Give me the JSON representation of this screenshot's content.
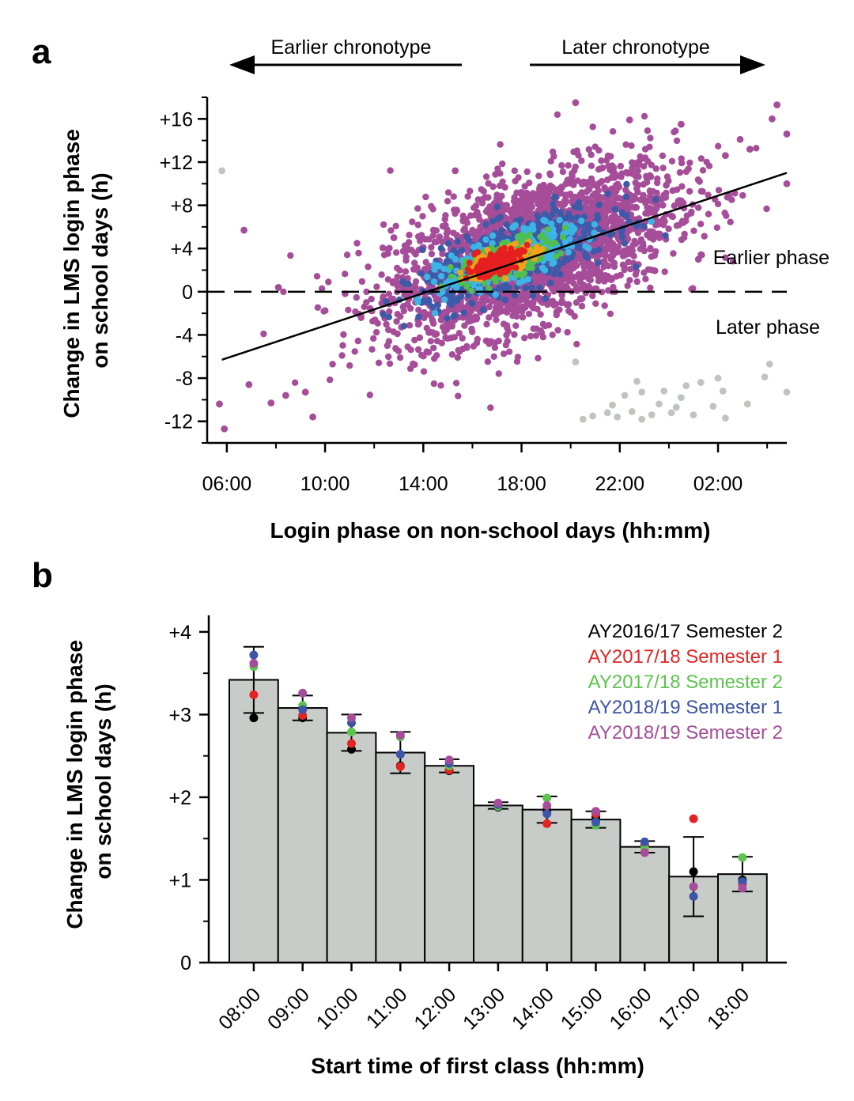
{
  "chart_data": [
    {
      "panel_label": "a",
      "type": "scatter",
      "xlabel": "Login phase on non-school days (hh:mm)",
      "ylabel": "Change in LMS login phase on school days (h)",
      "x_tick_labels": [
        "06:00",
        "10:00",
        "14:00",
        "18:00",
        "22:00",
        "02:00"
      ],
      "x_ticks_hours": [
        6,
        10,
        14,
        18,
        22,
        26
      ],
      "xlim_hours": [
        5.2,
        28.8
      ],
      "y_tick_labels": [
        "+16",
        "+12",
        "+8",
        "+4",
        "0",
        "-4",
        "-8",
        "-12"
      ],
      "y_ticks": [
        16,
        12,
        8,
        4,
        0,
        -4,
        -8,
        -12
      ],
      "ylim": [
        -14,
        18
      ],
      "annotations": {
        "earlier_chronotype": "Earlier chronotype",
        "later_chronotype": "Later chronotype",
        "earlier_phase": "Earlier phase",
        "later_phase": "Later phase"
      },
      "regression_line": {
        "x": [
          5.8,
          28.8
        ],
        "y": [
          -6.3,
          11.0
        ]
      },
      "reference_line_y": 0,
      "density_colors": [
        "#a64d99",
        "#3d5aa8",
        "#3cb4e6",
        "#4fbf4f",
        "#f0a21a",
        "#e62020"
      ],
      "outlier_color": "#c0c4c0",
      "highlight_points": [
        {
          "x": 5.8,
          "y": 11.2,
          "group": "outlier"
        },
        {
          "x": 20.2,
          "y": -6.5,
          "group": "outlier"
        },
        {
          "x": 20.5,
          "y": -11.8,
          "group": "outlier"
        },
        {
          "x": 20.9,
          "y": -11.5,
          "group": "outlier"
        },
        {
          "x": 21.5,
          "y": -11.2,
          "group": "outlier"
        },
        {
          "x": 21.7,
          "y": -10.5,
          "group": "outlier"
        },
        {
          "x": 21.9,
          "y": -11.6,
          "group": "outlier"
        },
        {
          "x": 22.2,
          "y": -9.6,
          "group": "outlier"
        },
        {
          "x": 22.5,
          "y": -11.1,
          "group": "outlier"
        },
        {
          "x": 22.7,
          "y": -8.3,
          "group": "outlier"
        },
        {
          "x": 22.9,
          "y": -9.3,
          "group": "outlier"
        },
        {
          "x": 22.9,
          "y": -11.8,
          "group": "outlier"
        },
        {
          "x": 23.3,
          "y": -11.4,
          "group": "outlier"
        },
        {
          "x": 23.6,
          "y": -10.4,
          "group": "outlier"
        },
        {
          "x": 23.8,
          "y": -9.2,
          "group": "outlier"
        },
        {
          "x": 24.1,
          "y": -11.2,
          "group": "outlier"
        },
        {
          "x": 24.3,
          "y": -10.7,
          "group": "outlier"
        },
        {
          "x": 24.5,
          "y": -9.8,
          "group": "outlier"
        },
        {
          "x": 24.7,
          "y": -8.7,
          "group": "outlier"
        },
        {
          "x": 25.0,
          "y": -11.4,
          "group": "outlier"
        },
        {
          "x": 25.3,
          "y": -8.4,
          "group": "outlier"
        },
        {
          "x": 25.8,
          "y": -10.6,
          "group": "outlier"
        },
        {
          "x": 26.0,
          "y": -8.0,
          "group": "outlier"
        },
        {
          "x": 26.2,
          "y": -9.2,
          "group": "outlier"
        },
        {
          "x": 26.3,
          "y": -11.7,
          "group": "outlier"
        },
        {
          "x": 27.2,
          "y": -10.4,
          "group": "outlier"
        },
        {
          "x": 27.9,
          "y": -7.9,
          "group": "outlier"
        },
        {
          "x": 28.1,
          "y": -6.7,
          "group": "outlier"
        },
        {
          "x": 28.8,
          "y": -9.3,
          "group": "outlier"
        },
        {
          "x": 5.7,
          "y": -10.4,
          "group": "main"
        },
        {
          "x": 5.9,
          "y": -12.7,
          "group": "main"
        },
        {
          "x": 6.7,
          "y": 5.7,
          "group": "main"
        },
        {
          "x": 6.9,
          "y": -8.6,
          "group": "main"
        },
        {
          "x": 7.8,
          "y": -10.3,
          "group": "main"
        },
        {
          "x": 8.1,
          "y": 0.4,
          "group": "main"
        },
        {
          "x": 8.4,
          "y": -9.6,
          "group": "main"
        },
        {
          "x": 9.2,
          "y": -9.3,
          "group": "main"
        },
        {
          "x": 9.5,
          "y": -11.6,
          "group": "main"
        },
        {
          "x": 12.8,
          "y": 5.0,
          "group": "main"
        },
        {
          "x": 15.3,
          "y": 11.2,
          "group": "main"
        },
        {
          "x": 20.2,
          "y": 17.5,
          "group": "main"
        },
        {
          "x": 22.4,
          "y": 15.9,
          "group": "main"
        },
        {
          "x": 24.5,
          "y": 15.5,
          "group": "main"
        },
        {
          "x": 25.2,
          "y": 3.0,
          "group": "main"
        },
        {
          "x": 26.3,
          "y": 12.6,
          "group": "main"
        },
        {
          "x": 26.9,
          "y": 14.1,
          "group": "main"
        },
        {
          "x": 27.3,
          "y": 13.2,
          "group": "main"
        },
        {
          "x": 28.2,
          "y": 16.0,
          "group": "main"
        },
        {
          "x": 28.4,
          "y": 17.3,
          "group": "main"
        },
        {
          "x": 28.8,
          "y": 14.6,
          "group": "main"
        },
        {
          "x": 28.8,
          "y": 10.0,
          "group": "main"
        }
      ]
    },
    {
      "panel_label": "b",
      "type": "bar",
      "xlabel": "Start time of first class (hh:mm)",
      "ylabel": "Change in LMS login phase on school days (h)",
      "categories": [
        "08:00",
        "09:00",
        "10:00",
        "11:00",
        "12:00",
        "13:00",
        "14:00",
        "15:00",
        "16:00",
        "17:00",
        "18:00"
      ],
      "values": [
        3.42,
        3.08,
        2.78,
        2.54,
        2.38,
        1.9,
        1.85,
        1.73,
        1.4,
        1.04,
        1.07
      ],
      "errors": [
        0.4,
        0.15,
        0.22,
        0.25,
        0.08,
        0.04,
        0.16,
        0.1,
        0.07,
        0.48,
        0.21
      ],
      "y_tick_labels": [
        "0",
        "+1",
        "+2",
        "+3",
        "+4"
      ],
      "y_ticks": [
        0,
        1,
        2,
        3,
        4
      ],
      "ylim": [
        0,
        4.2
      ],
      "bar_color": "#c8ccc8",
      "series": [
        {
          "name": "AY2016/17 Semester 2",
          "color": "#000000",
          "values": [
            2.96,
            2.96,
            2.58,
            2.38,
            2.32,
            1.88,
            1.84,
            1.76,
            1.42,
            1.1,
            1.0
          ]
        },
        {
          "name": "AY2017/18 Semester 1",
          "color": "#e32424",
          "values": [
            3.24,
            2.99,
            2.65,
            2.37,
            2.33,
            1.9,
            1.68,
            1.8,
            1.42,
            1.74,
            0.95
          ]
        },
        {
          "name": "AY2017/18 Semester 2",
          "color": "#5cc44c",
          "values": [
            3.58,
            3.11,
            2.79,
            2.73,
            2.38,
            1.89,
            1.99,
            1.66,
            1.38,
            0.92,
            1.27
          ]
        },
        {
          "name": "AY2018/19 Semester 1",
          "color": "#3c55a8",
          "values": [
            3.72,
            3.06,
            2.9,
            2.52,
            2.41,
            1.91,
            1.8,
            1.7,
            1.46,
            0.8,
            0.98
          ]
        },
        {
          "name": "AY2018/19 Semester 2",
          "color": "#a64d99",
          "values": [
            3.62,
            3.26,
            2.96,
            2.75,
            2.45,
            1.93,
            1.9,
            1.83,
            1.33,
            0.92,
            0.9
          ]
        }
      ]
    }
  ]
}
